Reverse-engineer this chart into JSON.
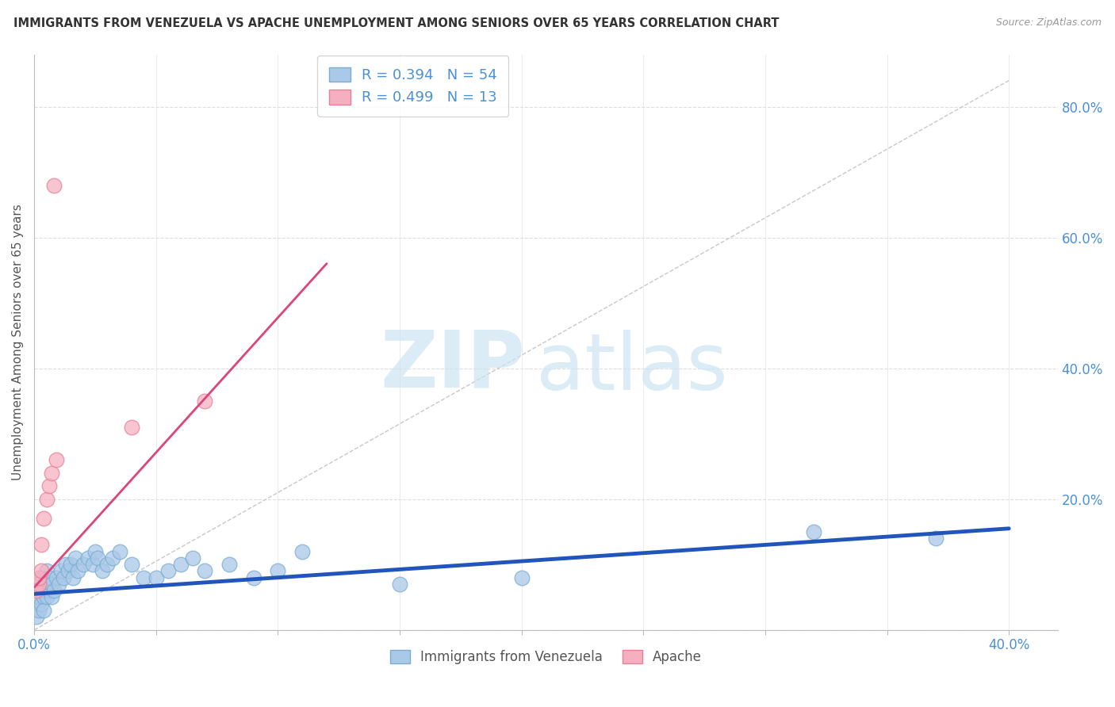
{
  "title": "IMMIGRANTS FROM VENEZUELA VS APACHE UNEMPLOYMENT AMONG SENIORS OVER 65 YEARS CORRELATION CHART",
  "source": "Source: ZipAtlas.com",
  "ylabel": "Unemployment Among Seniors over 65 years",
  "xlim": [
    0.0,
    0.42
  ],
  "ylim": [
    0.0,
    0.88
  ],
  "xticks": [
    0.0,
    0.05,
    0.1,
    0.15,
    0.2,
    0.25,
    0.3,
    0.35,
    0.4
  ],
  "yticks": [
    0.0,
    0.2,
    0.4,
    0.6,
    0.8
  ],
  "yticklabels_right": [
    "",
    "20.0%",
    "40.0%",
    "60.0%",
    "80.0%"
  ],
  "legend1_label": "R = 0.394   N = 54",
  "legend2_label": "R = 0.499   N = 13",
  "blue_scatter": [
    [
      0.001,
      0.04
    ],
    [
      0.001,
      0.02
    ],
    [
      0.002,
      0.05
    ],
    [
      0.002,
      0.07
    ],
    [
      0.002,
      0.03
    ],
    [
      0.003,
      0.06
    ],
    [
      0.003,
      0.04
    ],
    [
      0.003,
      0.08
    ],
    [
      0.004,
      0.05
    ],
    [
      0.004,
      0.03
    ],
    [
      0.004,
      0.06
    ],
    [
      0.004,
      0.07
    ],
    [
      0.005,
      0.05
    ],
    [
      0.005,
      0.07
    ],
    [
      0.005,
      0.09
    ],
    [
      0.006,
      0.06
    ],
    [
      0.006,
      0.08
    ],
    [
      0.007,
      0.07
    ],
    [
      0.007,
      0.05
    ],
    [
      0.008,
      0.06
    ],
    [
      0.009,
      0.08
    ],
    [
      0.01,
      0.07
    ],
    [
      0.011,
      0.09
    ],
    [
      0.012,
      0.08
    ],
    [
      0.013,
      0.1
    ],
    [
      0.014,
      0.09
    ],
    [
      0.015,
      0.1
    ],
    [
      0.016,
      0.08
    ],
    [
      0.017,
      0.11
    ],
    [
      0.018,
      0.09
    ],
    [
      0.02,
      0.1
    ],
    [
      0.022,
      0.11
    ],
    [
      0.024,
      0.1
    ],
    [
      0.025,
      0.12
    ],
    [
      0.026,
      0.11
    ],
    [
      0.028,
      0.09
    ],
    [
      0.03,
      0.1
    ],
    [
      0.032,
      0.11
    ],
    [
      0.035,
      0.12
    ],
    [
      0.04,
      0.1
    ],
    [
      0.045,
      0.08
    ],
    [
      0.05,
      0.08
    ],
    [
      0.055,
      0.09
    ],
    [
      0.06,
      0.1
    ],
    [
      0.065,
      0.11
    ],
    [
      0.07,
      0.09
    ],
    [
      0.08,
      0.1
    ],
    [
      0.09,
      0.08
    ],
    [
      0.1,
      0.09
    ],
    [
      0.11,
      0.12
    ],
    [
      0.15,
      0.07
    ],
    [
      0.2,
      0.08
    ],
    [
      0.32,
      0.15
    ],
    [
      0.37,
      0.14
    ]
  ],
  "pink_scatter": [
    [
      0.001,
      0.06
    ],
    [
      0.002,
      0.07
    ],
    [
      0.002,
      0.08
    ],
    [
      0.003,
      0.09
    ],
    [
      0.003,
      0.13
    ],
    [
      0.004,
      0.17
    ],
    [
      0.005,
      0.2
    ],
    [
      0.006,
      0.22
    ],
    [
      0.007,
      0.24
    ],
    [
      0.008,
      0.68
    ],
    [
      0.009,
      0.26
    ],
    [
      0.04,
      0.31
    ],
    [
      0.07,
      0.35
    ]
  ],
  "blue_line_x": [
    0.0,
    0.4
  ],
  "blue_line_y": [
    0.055,
    0.155
  ],
  "pink_line_x": [
    0.0,
    0.12
  ],
  "pink_line_y": [
    0.065,
    0.56
  ],
  "ref_line_x": [
    0.0,
    0.4
  ],
  "ref_line_y": [
    0.0,
    0.84
  ],
  "watermark_zip": "ZIP",
  "watermark_atlas": "atlas",
  "scatter_color_blue": "#aac8e8",
  "scatter_edge_blue": "#7aaed0",
  "scatter_color_pink": "#f5b0c0",
  "scatter_edge_pink": "#e88098",
  "line_color_blue": "#2255bb",
  "line_color_pink": "#dd4477",
  "ref_line_color": "#c8c8c8",
  "background_color": "#ffffff",
  "grid_color": "#dddddd",
  "tick_label_color": "#4a90d9",
  "text_color_dark": "#333333",
  "source_color": "#999999"
}
